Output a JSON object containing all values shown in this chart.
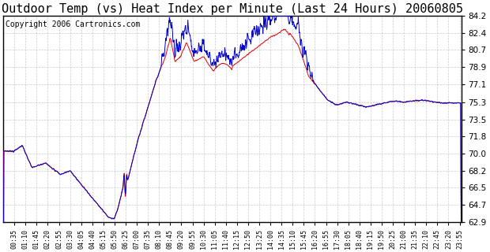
{
  "title": "Outdoor Temp (vs) Heat Index per Minute (Last 24 Hours) 20060805",
  "copyright": "Copyright 2006 Cartronics.com",
  "ylim": [
    62.9,
    84.2
  ],
  "yticks": [
    84.2,
    82.4,
    80.7,
    78.9,
    77.1,
    75.3,
    73.5,
    71.8,
    70.0,
    68.2,
    66.5,
    64.7,
    62.9
  ],
  "xlabel_times": [
    "00:35",
    "01:10",
    "01:45",
    "02:20",
    "02:55",
    "03:30",
    "04:05",
    "04:40",
    "05:15",
    "05:50",
    "06:25",
    "07:00",
    "07:35",
    "08:10",
    "08:45",
    "09:20",
    "09:55",
    "10:30",
    "11:05",
    "11:40",
    "12:15",
    "12:50",
    "13:25",
    "14:00",
    "14:35",
    "15:10",
    "15:45",
    "16:20",
    "16:55",
    "17:30",
    "18:05",
    "18:40",
    "19:15",
    "19:50",
    "20:25",
    "21:00",
    "21:35",
    "22:10",
    "22:45",
    "23:20",
    "23:55"
  ],
  "bg_color": "#ffffff",
  "plot_bg_color": "#ffffff",
  "grid_color": "#aaaaaa",
  "line_red": "#dd0000",
  "line_blue": "#0000cc",
  "title_fontsize": 11,
  "copyright_fontsize": 7
}
